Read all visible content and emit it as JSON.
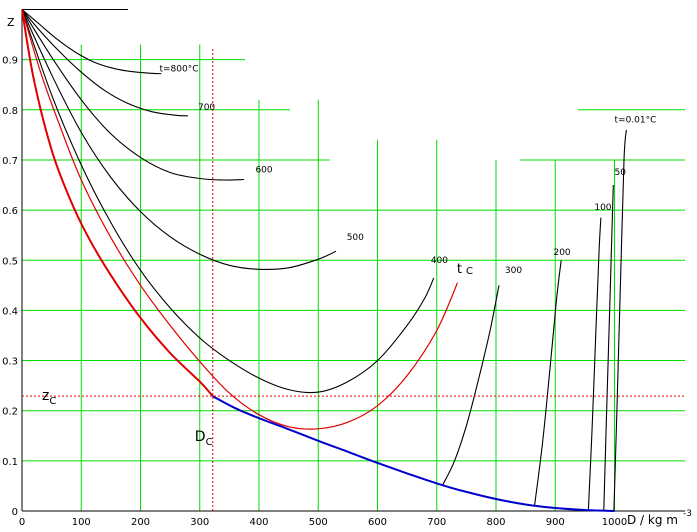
{
  "chart_data": {
    "type": "line",
    "xlabel": "D / kg m",
    "xlabel_exp": "-3",
    "ylabel": "Z",
    "xlim": [
      0,
      1100
    ],
    "ylim": [
      0,
      1
    ],
    "x_ticks": [
      0,
      100,
      200,
      300,
      400,
      500,
      600,
      700,
      800,
      900,
      1000
    ],
    "y_ticks": [
      "0",
      "0.1",
      "0.2",
      "0.3",
      "0.4",
      "0.5",
      "0.6",
      "0.7",
      "0.8",
      "0.9"
    ],
    "grid": true,
    "colors": {
      "grid": "#00dd00",
      "isotherm": "#000000",
      "critical_isotherm": "#e00000",
      "saturation_curve_gas": "#e00000",
      "saturation_curve_liquid": "#0000cc",
      "critical_marker": "#e00000"
    },
    "critical_point": {
      "D": 322,
      "Z": 0.229,
      "D_label": "D",
      "D_sub": "C",
      "Z_label": "z",
      "Z_sub": "C"
    },
    "series": [
      {
        "name": "t=800°C",
        "label": "t=800°C",
        "label_at": [
          232,
          0.876
        ],
        "points": [
          [
            0,
            1.0
          ],
          [
            30,
            0.97
          ],
          [
            60,
            0.94
          ],
          [
            90,
            0.915
          ],
          [
            120,
            0.896
          ],
          [
            150,
            0.884
          ],
          [
            180,
            0.877
          ],
          [
            215,
            0.873
          ],
          [
            235,
            0.872
          ]
        ]
      },
      {
        "name": "700",
        "label": "700",
        "label_at": [
          297,
          0.8
        ],
        "points": [
          [
            0,
            1.0
          ],
          [
            30,
            0.958
          ],
          [
            60,
            0.92
          ],
          [
            100,
            0.875
          ],
          [
            140,
            0.838
          ],
          [
            180,
            0.812
          ],
          [
            220,
            0.796
          ],
          [
            260,
            0.789
          ],
          [
            280,
            0.788
          ]
        ]
      },
      {
        "name": "600",
        "label": "600",
        "label_at": [
          394,
          0.675
        ],
        "points": [
          [
            0,
            1.0
          ],
          [
            50,
            0.905
          ],
          [
            100,
            0.82
          ],
          [
            150,
            0.752
          ],
          [
            200,
            0.705
          ],
          [
            250,
            0.675
          ],
          [
            300,
            0.663
          ],
          [
            340,
            0.66
          ],
          [
            375,
            0.661
          ]
        ]
      },
      {
        "name": "500",
        "label": "500",
        "label_at": [
          548,
          0.54
        ],
        "points": [
          [
            0,
            1.0
          ],
          [
            50,
            0.87
          ],
          [
            100,
            0.755
          ],
          [
            150,
            0.665
          ],
          [
            200,
            0.597
          ],
          [
            250,
            0.547
          ],
          [
            300,
            0.512
          ],
          [
            350,
            0.49
          ],
          [
            400,
            0.482
          ],
          [
            450,
            0.485
          ],
          [
            500,
            0.502
          ],
          [
            530,
            0.518
          ]
        ]
      },
      {
        "name": "400",
        "label": "400",
        "label_at": [
          690,
          0.495
        ],
        "points": [
          [
            0,
            1.0
          ],
          [
            50,
            0.83
          ],
          [
            100,
            0.69
          ],
          [
            150,
            0.575
          ],
          [
            200,
            0.48
          ],
          [
            250,
            0.405
          ],
          [
            300,
            0.345
          ],
          [
            350,
            0.3
          ],
          [
            400,
            0.265
          ],
          [
            450,
            0.242
          ],
          [
            500,
            0.237
          ],
          [
            550,
            0.258
          ],
          [
            600,
            0.3
          ],
          [
            650,
            0.37
          ],
          [
            680,
            0.425
          ],
          [
            695,
            0.465
          ]
        ]
      },
      {
        "name": "300",
        "label": "300",
        "label_at": [
          815,
          0.475
        ],
        "points": [
          [
            710,
            0.052
          ],
          [
            730,
            0.1
          ],
          [
            750,
            0.17
          ],
          [
            770,
            0.26
          ],
          [
            790,
            0.36
          ],
          [
            805,
            0.45
          ]
        ]
      },
      {
        "name": "200",
        "label": "200",
        "label_at": [
          897,
          0.51
        ],
        "points": [
          [
            865,
            0.01
          ],
          [
            878,
            0.13
          ],
          [
            890,
            0.27
          ],
          [
            902,
            0.42
          ],
          [
            910,
            0.5
          ]
        ]
      },
      {
        "name": "100",
        "label": "100",
        "label_at": [
          966,
          0.6
        ],
        "points": [
          [
            956,
            0.003
          ],
          [
            962,
            0.16
          ],
          [
            968,
            0.34
          ],
          [
            974,
            0.52
          ],
          [
            977,
            0.585
          ]
        ]
      },
      {
        "name": "50",
        "label": "50",
        "label_at": [
          1000,
          0.67
        ],
        "points": [
          [
            982,
            0.002
          ],
          [
            987,
            0.21
          ],
          [
            993,
            0.45
          ],
          [
            998,
            0.65
          ]
        ]
      },
      {
        "name": "t=0.01°C",
        "label": "t=0.01°C",
        "label_at": [
          1000,
          0.775
        ],
        "points": [
          [
            999,
            0.001
          ],
          [
            1004,
            0.2
          ],
          [
            1010,
            0.45
          ],
          [
            1016,
            0.7
          ],
          [
            1020,
            0.76
          ]
        ]
      }
    ],
    "critical_isotherm": {
      "name": "t_C",
      "label": "t",
      "label_sub": "C",
      "label_at": [
        734,
        0.475
      ],
      "points": [
        [
          0,
          1.0
        ],
        [
          30,
          0.88
        ],
        [
          60,
          0.78
        ],
        [
          100,
          0.66
        ],
        [
          150,
          0.545
        ],
        [
          200,
          0.45
        ],
        [
          250,
          0.37
        ],
        [
          300,
          0.298
        ],
        [
          350,
          0.235
        ],
        [
          400,
          0.192
        ],
        [
          450,
          0.168
        ],
        [
          500,
          0.164
        ],
        [
          550,
          0.177
        ],
        [
          600,
          0.21
        ],
        [
          650,
          0.27
        ],
        [
          700,
          0.36
        ],
        [
          735,
          0.455
        ]
      ]
    },
    "saturation_curve": {
      "gas_side": [
        [
          0,
          1.0
        ],
        [
          20,
          0.86
        ],
        [
          50,
          0.72
        ],
        [
          80,
          0.625
        ],
        [
          110,
          0.55
        ],
        [
          150,
          0.47
        ],
        [
          200,
          0.385
        ],
        [
          250,
          0.315
        ],
        [
          300,
          0.258
        ],
        [
          322,
          0.229
        ]
      ],
      "liquid_side": [
        [
          322,
          0.229
        ],
        [
          360,
          0.205
        ],
        [
          400,
          0.185
        ],
        [
          450,
          0.163
        ],
        [
          500,
          0.14
        ],
        [
          550,
          0.118
        ],
        [
          600,
          0.096
        ],
        [
          650,
          0.075
        ],
        [
          700,
          0.055
        ],
        [
          750,
          0.038
        ],
        [
          800,
          0.024
        ],
        [
          850,
          0.013
        ],
        [
          900,
          0.006
        ],
        [
          950,
          0.002
        ],
        [
          1000,
          0.0
        ]
      ]
    }
  }
}
